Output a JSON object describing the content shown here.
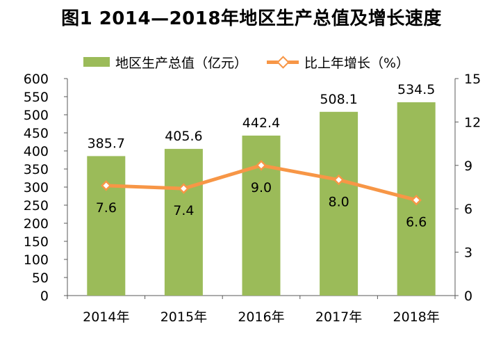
{
  "title": "图1  2014—2018年地区生产总值及增长速度",
  "legend": {
    "bar_label": "地区生产总值（亿元）",
    "line_label": "比上年增长（%）"
  },
  "colors": {
    "bar": "#9bbb59",
    "line": "#f79646",
    "axis": "#595959"
  },
  "chart_data": {
    "type": "bar+line",
    "categories": [
      "2014年",
      "2015年",
      "2016年",
      "2017年",
      "2018年"
    ],
    "series": [
      {
        "name": "地区生产总值（亿元）",
        "type": "bar",
        "axis": "left",
        "values": [
          385.7,
          405.6,
          442.4,
          508.1,
          534.5
        ],
        "labels": [
          "385.7",
          "405.6",
          "442.4",
          "508.1",
          "534.5"
        ]
      },
      {
        "name": "比上年增长（%）",
        "type": "line",
        "axis": "right",
        "values": [
          7.6,
          7.4,
          9.0,
          8.0,
          6.6
        ],
        "labels": [
          "7.6",
          "7.4",
          "9.0",
          "8.0",
          "6.6"
        ]
      }
    ],
    "y_left": {
      "range": [
        0,
        600
      ],
      "ticks": [
        "0",
        "50",
        "100",
        "150",
        "200",
        "250",
        "300",
        "350",
        "400",
        "450",
        "500",
        "550",
        "600"
      ]
    },
    "y_right": {
      "range": [
        0,
        15
      ],
      "ticks": [
        "0",
        "3",
        "6",
        "9",
        "12",
        "15"
      ]
    },
    "grid": false,
    "legend_position": "top"
  }
}
